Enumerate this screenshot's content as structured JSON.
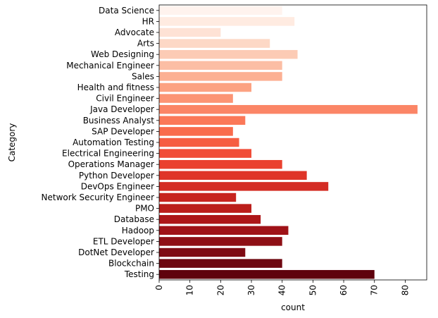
{
  "chart_data": {
    "type": "bar",
    "orientation": "horizontal",
    "xlabel": "count",
    "ylabel": "Category",
    "xlim": [
      0,
      87
    ],
    "xticks": [
      0,
      10,
      20,
      30,
      40,
      50,
      60,
      70,
      80
    ],
    "xtick_rotation": 90,
    "grid": false,
    "palette": "Reds",
    "categories": [
      "Data Science",
      "HR",
      "Advocate",
      "Arts",
      "Web Designing",
      "Mechanical Engineer",
      "Sales",
      "Health and fitness",
      "Civil Engineer",
      "Java Developer",
      "Business Analyst",
      "SAP Developer",
      "Automation Testing",
      "Electrical Engineering",
      "Operations Manager",
      "Python Developer",
      "DevOps Engineer",
      "Network Security Engineer",
      "PMO",
      "Database",
      "Hadoop",
      "ETL Developer",
      "DotNet Developer",
      "Blockchain",
      "Testing"
    ],
    "values": [
      40,
      44,
      20,
      36,
      45,
      40,
      40,
      30,
      24,
      84,
      28,
      24,
      26,
      30,
      40,
      48,
      55,
      25,
      30,
      33,
      42,
      40,
      28,
      40,
      70
    ],
    "colors": [
      "#fff3ee",
      "#ffebe1",
      "#fee2d5",
      "#fdd8c6",
      "#fccbb5",
      "#fcbea4",
      "#fcb093",
      "#fca282",
      "#fc9474",
      "#fb8566",
      "#fb7858",
      "#f96b4c",
      "#f65d42",
      "#f14d38",
      "#ea412f",
      "#df3528",
      "#d42c24",
      "#c7241f",
      "#bb1e1b",
      "#ad1618",
      "#9f1217",
      "#8e0f15",
      "#7e0b13",
      "#6e0710",
      "#5f020d"
    ]
  }
}
